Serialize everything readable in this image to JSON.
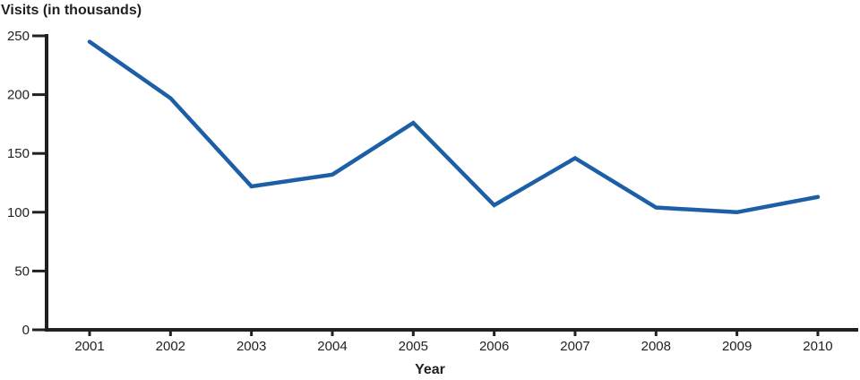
{
  "chart": {
    "y_axis_title": "Visits (in thousands)",
    "x_axis_title": "Year"
  },
  "chart_data": {
    "type": "line",
    "title": "Visits (in thousands)",
    "xlabel": "Year",
    "ylabel": "Visits (in thousands)",
    "categories": [
      "2001",
      "2002",
      "2003",
      "2004",
      "2005",
      "2006",
      "2007",
      "2008",
      "2009",
      "2010"
    ],
    "values": [
      245,
      197,
      122,
      132,
      176,
      106,
      146,
      104,
      100,
      113
    ],
    "y_ticks": [
      0,
      50,
      100,
      150,
      200,
      250
    ],
    "ylim": [
      0,
      250
    ],
    "grid": false,
    "legend": "none",
    "line_color": "#1d5fa7",
    "axis_color": "#231f20"
  }
}
